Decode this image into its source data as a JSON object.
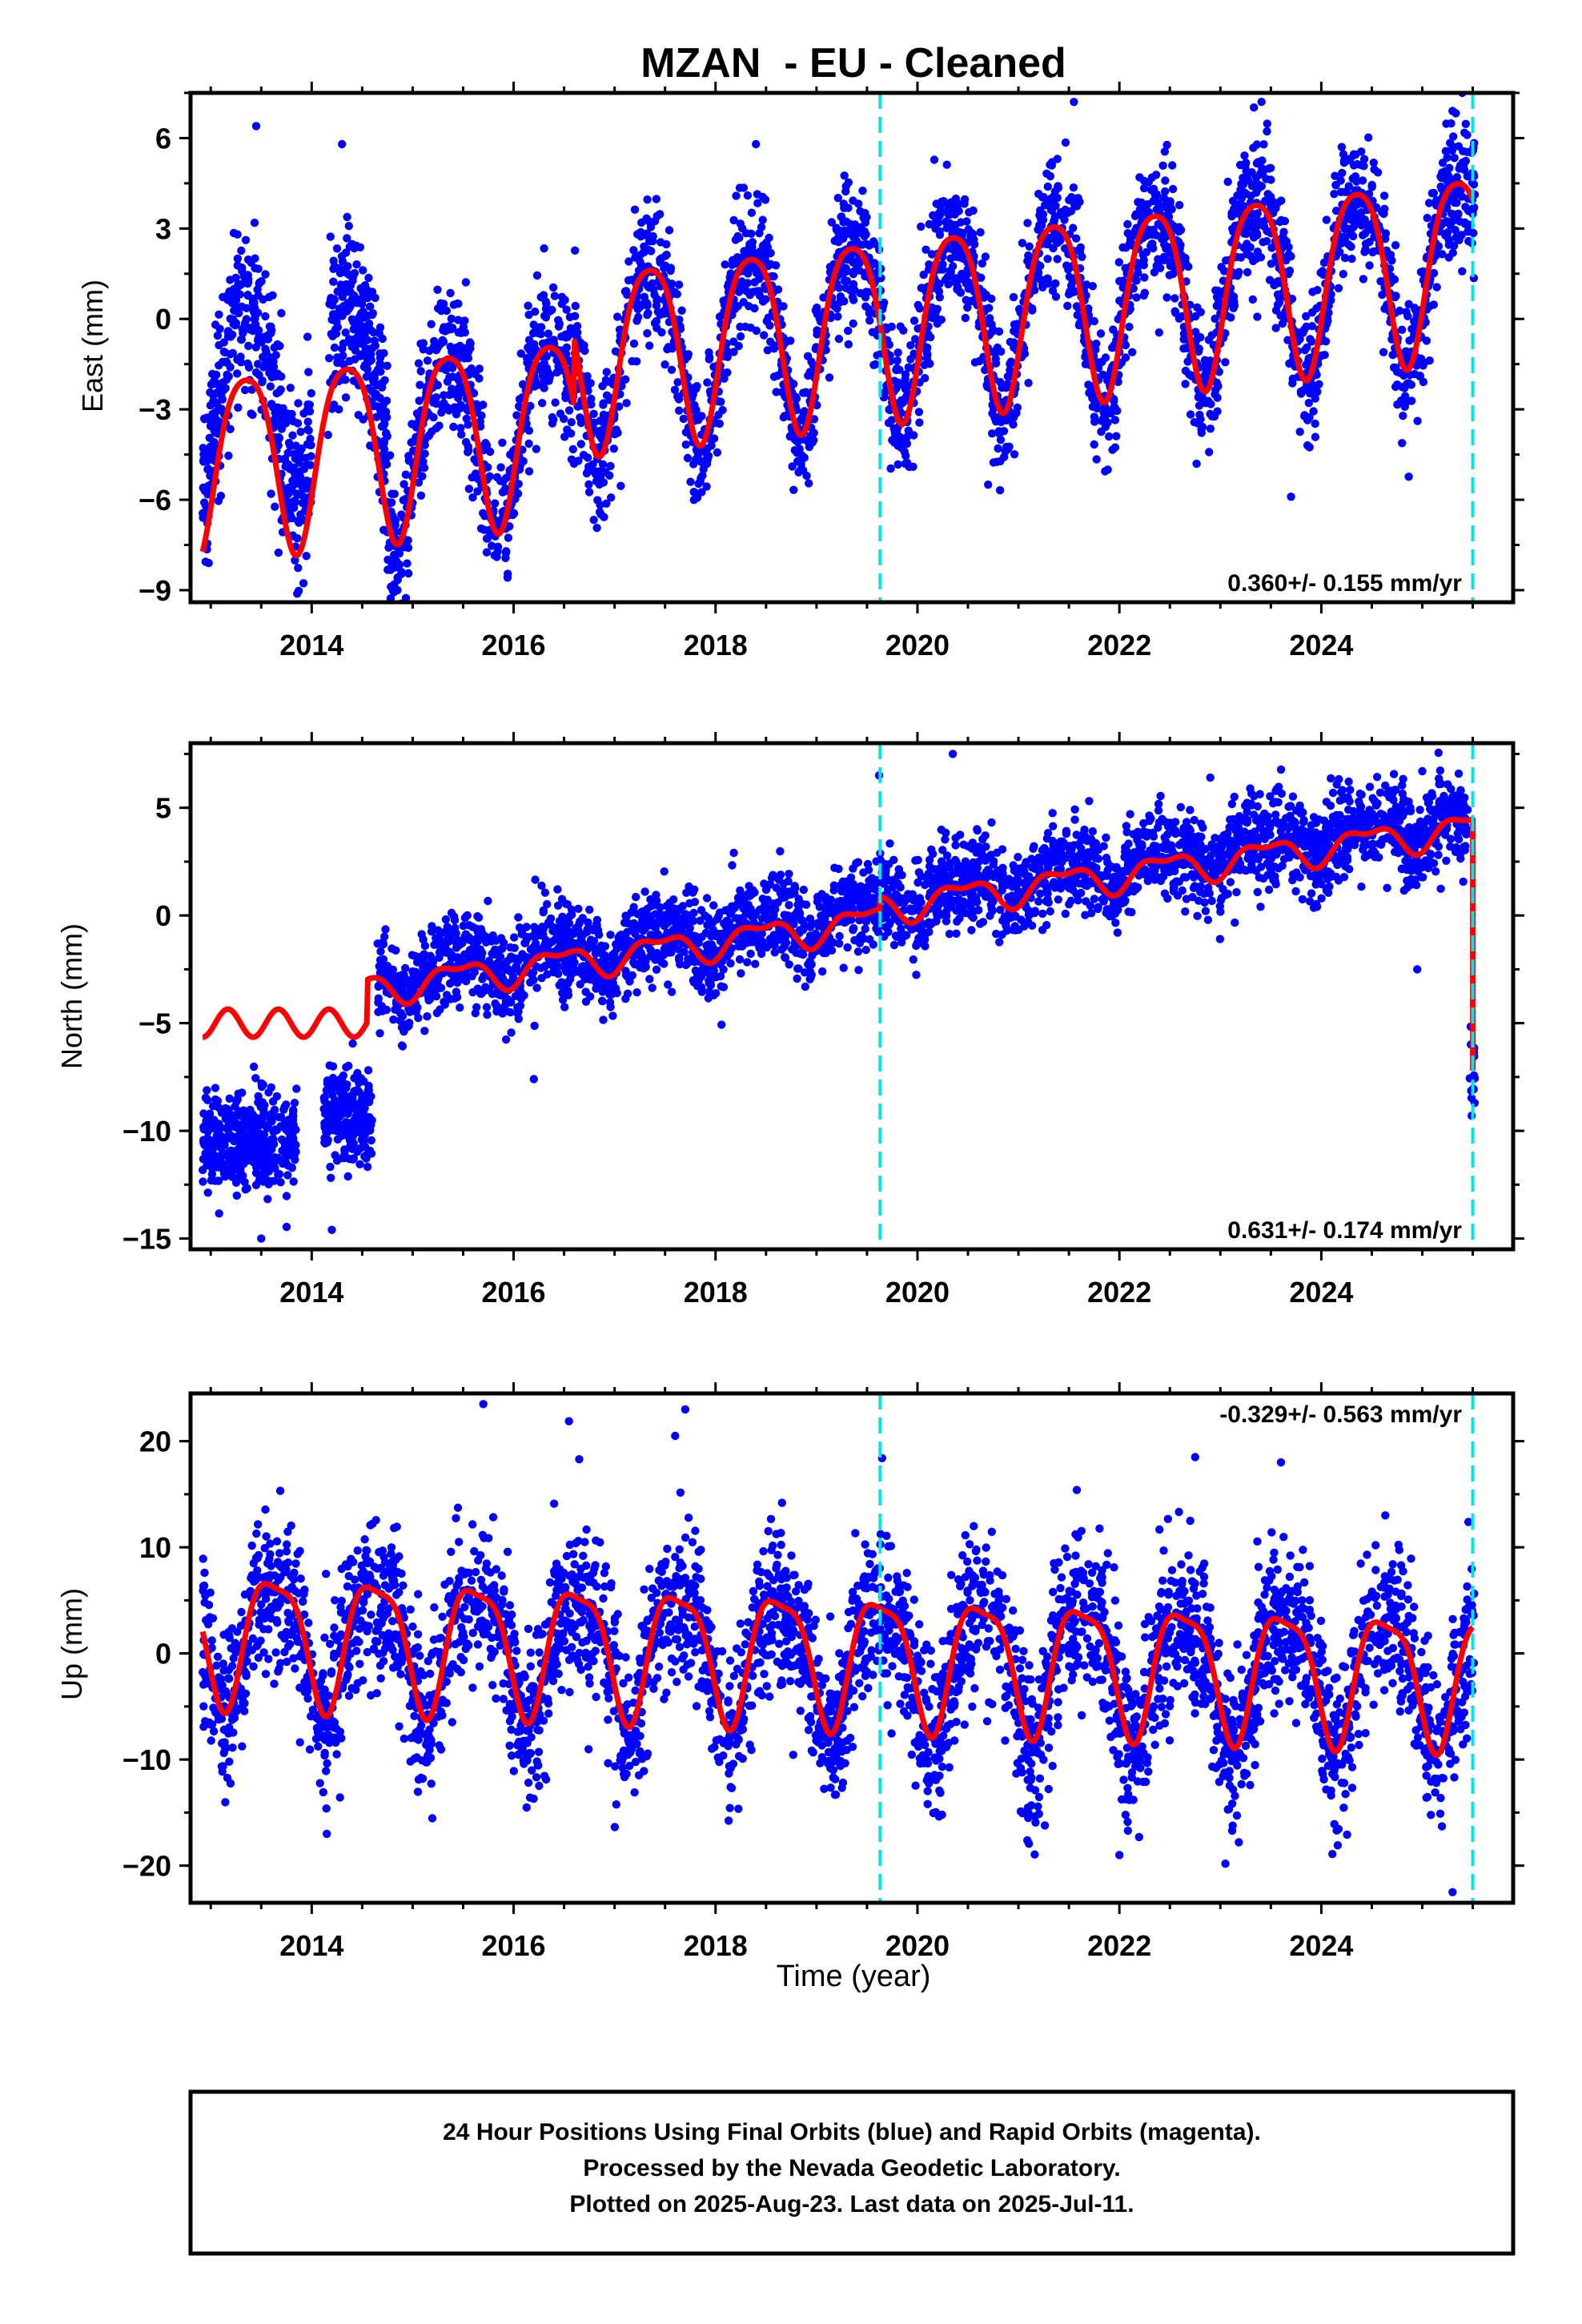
{
  "title": "MZAN  - EU - Cleaned",
  "xlabel": "Time (year)",
  "footer": {
    "line1": "24 Hour Positions Using Final Orbits (blue) and Rapid Orbits (magenta).",
    "line2": "Processed by the Nevada Geodetic Laboratory.",
    "line3": "Plotted on 2025-Aug-23. Last data on 2025-Jul-11."
  },
  "colors": {
    "data_points": "#0000ff",
    "model_fit": "#ff0000",
    "event_lines": "#00e5ee",
    "frame": "#000000"
  },
  "chart_data": [
    {
      "type": "scatter",
      "panel": "east",
      "ylabel": "East (mm)",
      "xlim": [
        2012.8,
        2025.9
      ],
      "ylim": [
        -9.4,
        7.5
      ],
      "xticks": [
        2014,
        2016,
        2018,
        2020,
        2022,
        2024
      ],
      "yticks": [
        6,
        3,
        0,
        -3,
        -6,
        -9
      ],
      "ytick_labels": [
        "6",
        "3",
        "0",
        "−3",
        "−6",
        "−9"
      ],
      "rate_label": "0.360+/- 0.155 mm/yr",
      "rate_position": "bottom-right",
      "event_lines": [
        2019.63,
        2025.5
      ],
      "model": {
        "start": 2012.92,
        "end": 2025.5,
        "step": 2016.6,
        "offset_before": -2.5,
        "offset_after": -0.3,
        "trend": 0.36,
        "ref_year": 2019.0,
        "annual_amp": 3.0,
        "annual_phase": 2019.35,
        "semi_amp": 0.5,
        "semi_phase": 2019.1
      },
      "scatter": {
        "groups": [
          {
            "start": 2012.92,
            "end": 2014.0,
            "n": 420,
            "noise": 1.5,
            "bias": 2.0
          },
          {
            "start": 2014.15,
            "end": 2014.75,
            "n": 260,
            "noise": 1.4,
            "bias": 2.0
          },
          {
            "start": 2014.75,
            "end": 2025.52,
            "n": 3300,
            "noise": 1.15,
            "bias": 0.0
          }
        ],
        "outliers": [
          [
            2013.45,
            6.4
          ],
          [
            2014.3,
            5.8
          ],
          [
            2014.85,
            -9.0
          ],
          [
            2014.85,
            -8.2
          ],
          [
            2018.4,
            5.8
          ],
          [
            2021.55,
            7.2
          ],
          [
            2020.7,
            -5.5
          ],
          [
            2023.7,
            -5.9
          ],
          [
            2025.3,
            6.9
          ]
        ]
      }
    },
    {
      "type": "scatter",
      "panel": "north",
      "ylabel": "North (mm)",
      "xlim": [
        2012.8,
        2025.9
      ],
      "ylim": [
        -15.5,
        8.0
      ],
      "xticks": [
        2014,
        2016,
        2018,
        2020,
        2022,
        2024
      ],
      "yticks": [
        5,
        0,
        -5,
        -10,
        -15
      ],
      "ytick_labels": [
        "5",
        "0",
        "−5",
        "−10",
        "−15"
      ],
      "rate_label": "0.631+/- 0.174 mm/yr",
      "rate_position": "bottom-right",
      "event_lines": [
        2019.63,
        2025.5
      ],
      "model": {
        "start": 2012.92,
        "end": 2025.5,
        "step": 2019.63,
        "offset_before": -0.6,
        "offset_after": 0.0,
        "trend": 0.631,
        "ref_year": 2019.0,
        "annual_amp": 0.65,
        "annual_phase": 2019.45,
        "semi_amp": 0.3,
        "semi_phase": 2019.2,
        "early_segment": {
          "end": 2014.55,
          "level": -5.0,
          "amp": 0.65
        },
        "final_drop": -7.2
      },
      "scatter": {
        "groups": [
          {
            "start": 2012.92,
            "end": 2013.85,
            "n": 420,
            "noise": 1.1,
            "level": -10.5
          },
          {
            "start": 2014.12,
            "end": 2014.6,
            "n": 230,
            "noise": 1.1,
            "level": -9.4
          },
          {
            "start": 2014.65,
            "end": 2025.45,
            "n": 3300,
            "noise": 1.05,
            "bias": 0.3
          },
          {
            "start": 2025.47,
            "end": 2025.52,
            "n": 14,
            "noise": 0.9,
            "level": -7.5
          }
        ],
        "outliers": [
          [
            2020.35,
            7.5
          ],
          [
            2019.62,
            6.5
          ],
          [
            2022.9,
            6.4
          ],
          [
            2025.0,
            6.7
          ],
          [
            2013.5,
            -15.0
          ],
          [
            2014.2,
            -14.6
          ],
          [
            2024.95,
            -2.5
          ],
          [
            2016.2,
            -7.6
          ]
        ]
      }
    },
    {
      "type": "scatter",
      "panel": "up",
      "ylabel": "Up (mm)",
      "xlim": [
        2012.8,
        2025.9
      ],
      "ylim": [
        -23.5,
        24.5
      ],
      "xticks": [
        2014,
        2016,
        2018,
        2020,
        2022,
        2024
      ],
      "yticks": [
        20,
        10,
        0,
        -10,
        -20
      ],
      "ytick_labels": [
        "20",
        "10",
        "0",
        "−10",
        "−20"
      ],
      "rate_label": "-0.329+/- 0.563 mm/yr",
      "rate_position": "top-right",
      "event_lines": [
        2019.63,
        2025.5
      ],
      "model": {
        "start": 2012.92,
        "end": 2025.5,
        "step": 2019.63,
        "offset_before": 0.0,
        "offset_after": 0.0,
        "trend": -0.329,
        "ref_year": 2019.0,
        "annual_amp": 6.0,
        "annual_phase": 2019.63,
        "semi_amp": 1.6,
        "semi_phase": 2019.4
      },
      "scatter": {
        "groups": [
          {
            "start": 2012.92,
            "end": 2025.52,
            "n": 3800,
            "noise": 3.8,
            "bias": -0.5
          }
        ],
        "outliers": [
          [
            2015.7,
            23.5
          ],
          [
            2017.7,
            23.0
          ],
          [
            2017.6,
            20.5
          ],
          [
            2014.15,
            -17.0
          ],
          [
            2022.0,
            -19.0
          ],
          [
            2025.3,
            -22.5
          ],
          [
            2023.6,
            18.0
          ],
          [
            2022.75,
            18.5
          ],
          [
            2016.65,
            18.3
          ],
          [
            2019.65,
            18.4
          ]
        ]
      }
    }
  ]
}
